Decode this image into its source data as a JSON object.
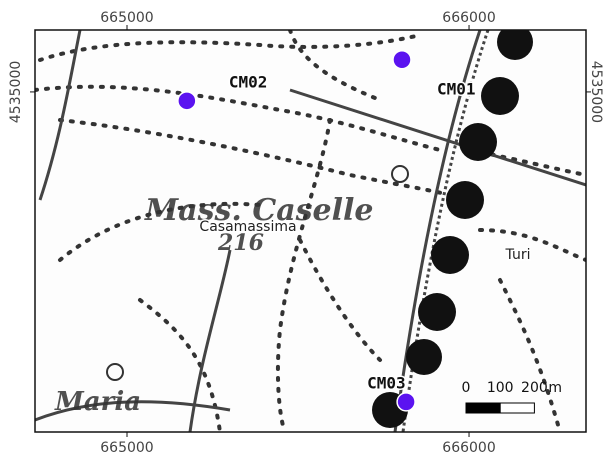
{
  "map": {
    "xlim": [
      664731,
      666342
    ],
    "ylim": [
      4534006,
      4535181
    ],
    "xticks": [
      665000,
      666000
    ],
    "yticks": [
      4535000
    ],
    "points": [
      {
        "label": "CM01",
        "x": 665804,
        "y": 4535094
      },
      {
        "label": "CM02",
        "x": 665175,
        "y": 4534974
      },
      {
        "label": "CM03",
        "x": 665816,
        "y": 4534094
      }
    ],
    "point_color": "#5b13f0",
    "places": [
      "Casamassima",
      "Turi"
    ],
    "map_text": [
      "Mass. Caselle",
      "216",
      "Maria"
    ],
    "scale_bar": {
      "ticks": [
        0,
        100,
        200
      ],
      "unit": "m"
    }
  }
}
